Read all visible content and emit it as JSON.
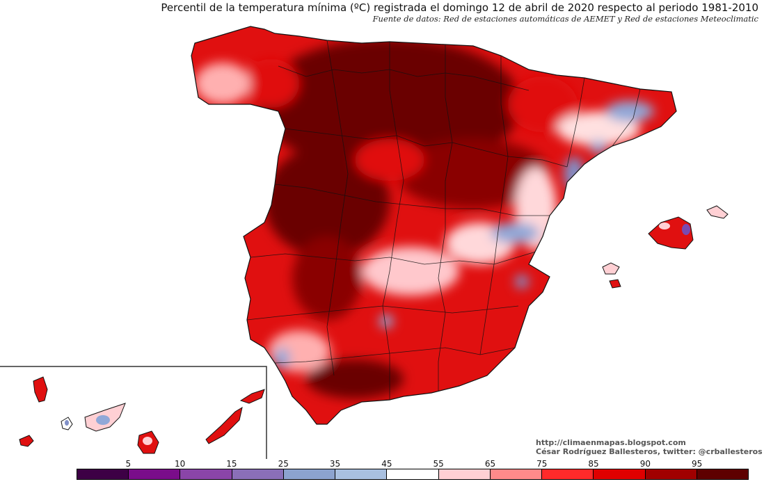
{
  "header": {
    "title": "Percentil de la temperatura mínima (ºC) registrada el domingo 12 de abril de 2020 respecto al periodo 1981-2010",
    "subtitle": "Fuente de datos: Red de estaciones automáticas de AEMET y Red de estaciones Meteoclimatic"
  },
  "credits": {
    "url": "http://climaenmapas.blogspot.com",
    "author": "César Rodríguez Ballesteros, twitter: @crballesteros"
  },
  "legend": {
    "colors": [
      "#3d0045",
      "#7a0d8a",
      "#8a45a8",
      "#8a6fb8",
      "#8ca3cf",
      "#a9c0e0",
      "#ffffff",
      "#ffd0d4",
      "#ff8a8a",
      "#ff2a2a",
      "#e00000",
      "#a00000",
      "#5e0000"
    ],
    "tick_labels": [
      "5",
      "10",
      "15",
      "25",
      "35",
      "45",
      "55",
      "65",
      "75",
      "85",
      "90",
      "95"
    ]
  }
}
